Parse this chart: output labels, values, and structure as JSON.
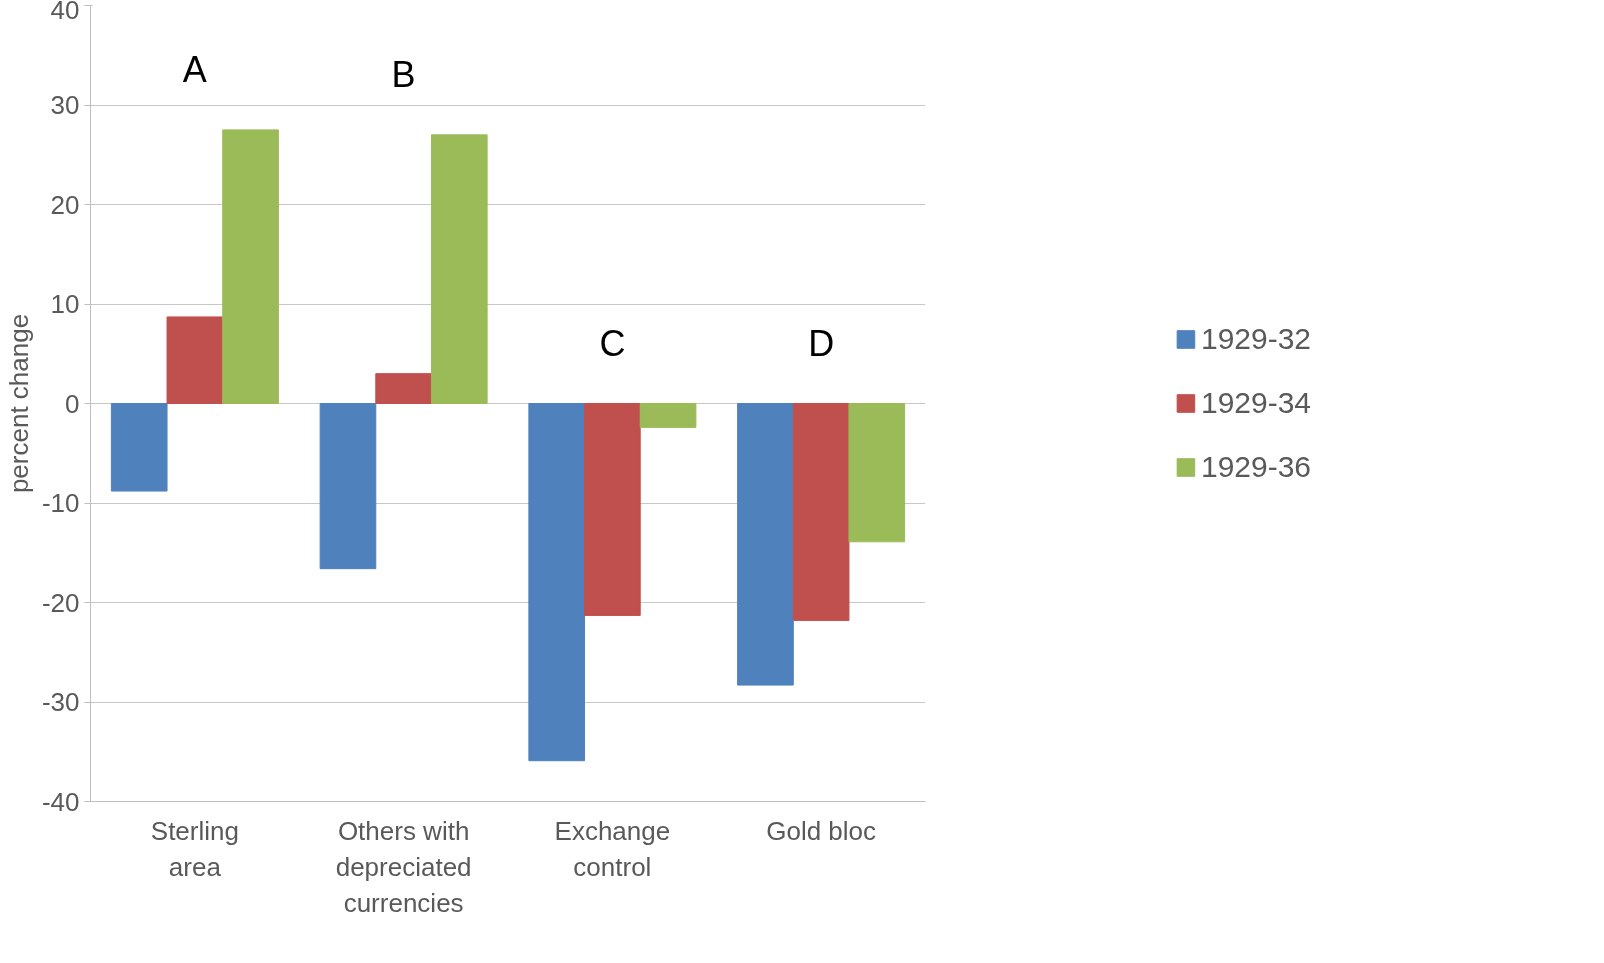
{
  "chart_data": {
    "type": "bar",
    "ylabel": "percent change",
    "categories": [
      "Sterling area",
      "Others with depreciated currencies",
      "Exchange control",
      "Gold bloc"
    ],
    "series": [
      {
        "name": "1929-32",
        "color": "#4f81bd",
        "values": [
          -8.8,
          -16.6,
          -35.9,
          -28.3
        ]
      },
      {
        "name": "1929-34",
        "color": "#c0504d",
        "values": [
          8.7,
          3.0,
          -21.3,
          -21.8
        ]
      },
      {
        "name": "1929-36",
        "color": "#9bbb59",
        "values": [
          27.5,
          27.0,
          -2.4,
          -13.9
        ]
      }
    ],
    "ylim": [
      -40,
      40
    ],
    "yticks": [
      -40,
      -30,
      -20,
      -10,
      0,
      10,
      20,
      30,
      40
    ],
    "grid": "y",
    "legend": "right",
    "annotations": [
      "A",
      "B",
      "C",
      "D"
    ]
  }
}
